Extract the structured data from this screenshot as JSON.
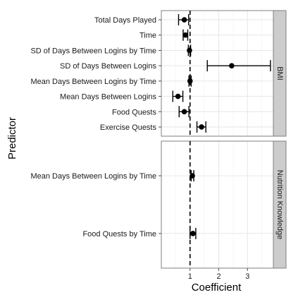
{
  "chart_data": {
    "type": "forest",
    "xlabel": "Coefficient",
    "ylabel": "Predictor",
    "xlim": [
      0.0,
      3.9
    ],
    "x_ticks": [
      1,
      2,
      3
    ],
    "reference_line": 1,
    "grid": true,
    "panels": [
      {
        "strip_label": "BMI",
        "rows": [
          {
            "label": "Total Days Played",
            "estimate": 0.8,
            "low": 0.6,
            "high": 0.95
          },
          {
            "label": "Time",
            "estimate": 0.84,
            "low": 0.76,
            "high": 0.92
          },
          {
            "label": "SD of Days Between Logins by Time",
            "estimate": 0.98,
            "low": 0.94,
            "high": 1.02
          },
          {
            "label": "SD of Days Between Logins",
            "estimate": 2.45,
            "low": 1.6,
            "high": 3.8
          },
          {
            "label": "Mean Days Between Logins by Time",
            "estimate": 1.0,
            "low": 0.96,
            "high": 1.04
          },
          {
            "label": "Mean Days Between Logins",
            "estimate": 0.58,
            "low": 0.4,
            "high": 0.75
          },
          {
            "label": "Food Quests",
            "estimate": 0.8,
            "low": 0.62,
            "high": 0.96
          },
          {
            "label": "Exercise Quests",
            "estimate": 1.4,
            "low": 1.24,
            "high": 1.55
          }
        ]
      },
      {
        "strip_label": "Nutrition Knowledge",
        "rows": [
          {
            "label": "Mean Days Between Logins by Time",
            "estimate": 1.08,
            "low": 1.04,
            "high": 1.13
          },
          {
            "label": "Food Quests by Time",
            "estimate": 1.1,
            "low": 1.0,
            "high": 1.2
          }
        ]
      }
    ]
  }
}
